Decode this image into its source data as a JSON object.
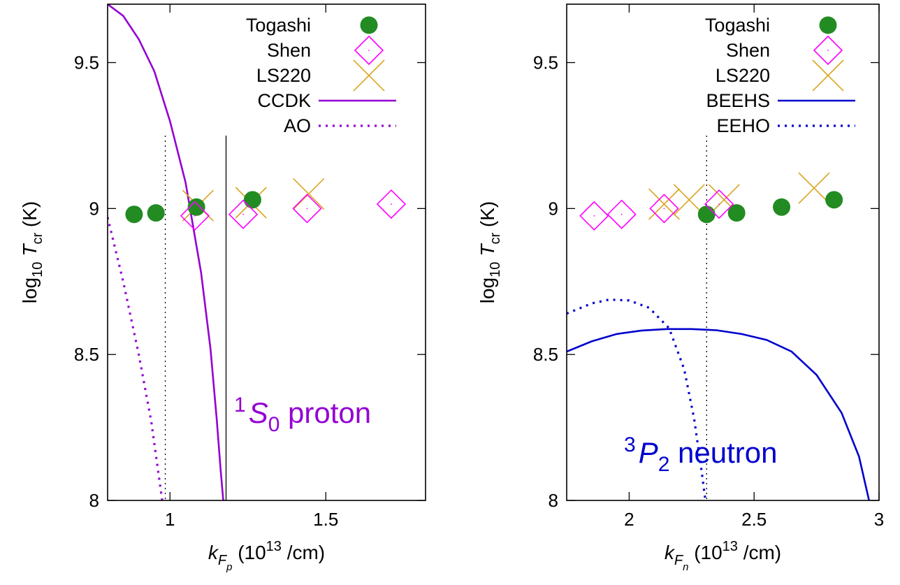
{
  "chart_data": [
    {
      "type": "scatter",
      "ylabel": {
        "prefix": "log",
        "prefix_sub": "10",
        "var": "T",
        "var_sub": "cr",
        "unit": " (K)"
      },
      "xlabel": {
        "var": "k",
        "sub": "F",
        "subsub": "p",
        "unit_a": " (10",
        "unit_exp": "13",
        "unit_b": " /cm)"
      },
      "xlim": [
        0.8,
        1.82
      ],
      "ylim": [
        8,
        9.7
      ],
      "xticks": [
        1,
        1.5
      ],
      "xtick_labels": [
        "1",
        "1.5"
      ],
      "yticks": [
        8,
        8.5,
        9,
        9.5
      ],
      "ytick_labels": [
        "8",
        "8.5",
        "9",
        "9.5"
      ],
      "annotation": {
        "sup": "1",
        "main": "S",
        "sub": "0",
        "rest": " proton",
        "color": "#9400d3"
      },
      "legend_position": "top-right",
      "series": [
        {
          "name": "Togashi",
          "marker": "circle",
          "color": "#228b22",
          "points": [
            [
              0.885,
              8.98
            ],
            [
              0.955,
              8.985
            ],
            [
              1.085,
              9.005
            ],
            [
              1.265,
              9.03
            ]
          ]
        },
        {
          "name": "Shen",
          "marker": "diamond",
          "color": "#ff00ff",
          "points": [
            [
              1.08,
              8.975
            ],
            [
              1.235,
              8.98
            ],
            [
              1.44,
              9.0
            ],
            [
              1.71,
              9.015
            ]
          ]
        },
        {
          "name": "LS220",
          "marker": "cross",
          "color": "#daa520",
          "points": [
            [
              1.09,
              9.01
            ],
            [
              1.26,
              9.02
            ],
            [
              1.445,
              9.05
            ]
          ]
        },
        {
          "name": "CCDK",
          "line": "solid",
          "color": "#9400d3",
          "points": [
            [
              0.8,
              9.7
            ],
            [
              0.85,
              9.66
            ],
            [
              0.9,
              9.58
            ],
            [
              0.95,
              9.47
            ],
            [
              1.0,
              9.3
            ],
            [
              1.05,
              9.09
            ],
            [
              1.1,
              8.78
            ],
            [
              1.13,
              8.52
            ],
            [
              1.15,
              8.28
            ],
            [
              1.163,
              8.1
            ],
            [
              1.172,
              7.99
            ]
          ]
        },
        {
          "name": "AO",
          "line": "dotted",
          "color": "#9400d3",
          "points": [
            [
              0.8,
              8.97
            ],
            [
              0.85,
              8.75
            ],
            [
              0.9,
              8.5
            ],
            [
              0.94,
              8.27
            ],
            [
              0.975,
              8.0
            ]
          ]
        }
      ],
      "vlines": [
        {
          "x": 0.985,
          "y_top": 9.25,
          "style": "dotted",
          "color": "#000000"
        },
        {
          "x": 1.18,
          "y_top": 9.25,
          "style": "solid",
          "color": "#000000"
        }
      ]
    },
    {
      "type": "scatter",
      "ylabel": {
        "prefix": "log",
        "prefix_sub": "10",
        "var": "T",
        "var_sub": "cr",
        "unit": " (K)"
      },
      "xlabel": {
        "var": "k",
        "sub": "F",
        "subsub": "n",
        "unit_a": " (10",
        "unit_exp": "13",
        "unit_b": " /cm)"
      },
      "xlim": [
        1.75,
        3.0
      ],
      "ylim": [
        8,
        9.7
      ],
      "xticks": [
        2,
        2.5,
        3
      ],
      "xtick_labels": [
        "2",
        "2.5",
        "3"
      ],
      "yticks": [
        8,
        8.5,
        9,
        9.5
      ],
      "ytick_labels": [
        "8",
        "8.5",
        "9",
        "9.5"
      ],
      "annotation": {
        "sup": "3",
        "main": "P",
        "sub": "2",
        "rest": " neutron",
        "color": "#0000cd"
      },
      "legend_position": "top-right",
      "series": [
        {
          "name": "Togashi",
          "marker": "circle",
          "color": "#228b22",
          "points": [
            [
              2.31,
              8.98
            ],
            [
              2.43,
              8.985
            ],
            [
              2.61,
              9.005
            ],
            [
              2.82,
              9.03
            ]
          ]
        },
        {
          "name": "Shen",
          "marker": "diamond",
          "color": "#ff00ff",
          "points": [
            [
              1.86,
              8.975
            ],
            [
              1.97,
              8.98
            ],
            [
              2.14,
              9.0
            ],
            [
              2.36,
              9.015
            ]
          ]
        },
        {
          "name": "LS220",
          "marker": "cross",
          "color": "#daa520",
          "points": [
            [
              2.14,
              9.015
            ],
            [
              2.24,
              9.03
            ],
            [
              2.38,
              9.03
            ],
            [
              2.74,
              9.07
            ]
          ]
        },
        {
          "name": "BEEHS",
          "line": "solid",
          "color": "#0000cd",
          "points": [
            [
              1.75,
              8.51
            ],
            [
              1.85,
              8.545
            ],
            [
              1.95,
              8.57
            ],
            [
              2.05,
              8.582
            ],
            [
              2.15,
              8.587
            ],
            [
              2.25,
              8.587
            ],
            [
              2.35,
              8.583
            ],
            [
              2.45,
              8.57
            ],
            [
              2.55,
              8.55
            ],
            [
              2.65,
              8.51
            ],
            [
              2.75,
              8.43
            ],
            [
              2.85,
              8.3
            ],
            [
              2.92,
              8.15
            ],
            [
              2.96,
              8.0
            ]
          ]
        },
        {
          "name": "EEHO",
          "line": "dotted",
          "color": "#0000cd",
          "points": [
            [
              1.75,
              8.64
            ],
            [
              1.85,
              8.675
            ],
            [
              1.92,
              8.688
            ],
            [
              2.0,
              8.685
            ],
            [
              2.08,
              8.66
            ],
            [
              2.16,
              8.59
            ],
            [
              2.22,
              8.45
            ],
            [
              2.26,
              8.28
            ],
            [
              2.29,
              8.1
            ],
            [
              2.305,
              8.0
            ]
          ]
        }
      ],
      "vlines": [
        {
          "x": 2.31,
          "y_top": 9.25,
          "style": "dotted",
          "color": "#000000"
        }
      ]
    }
  ]
}
